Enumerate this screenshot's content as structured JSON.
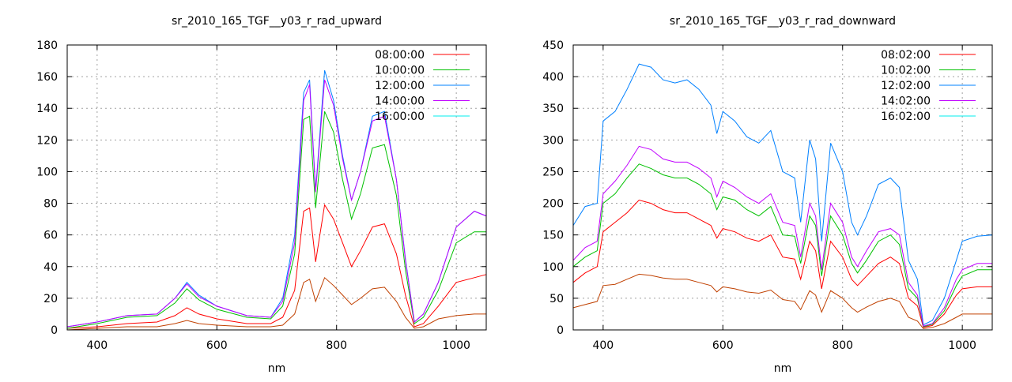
{
  "chart_data": [
    {
      "type": "line",
      "title": "sr_2010_165_TGF__y03_r_rad_upward",
      "xlabel": "nm",
      "ylabel": "",
      "xlim": [
        350,
        1050
      ],
      "ylim": [
        0,
        180
      ],
      "xticks": [
        400,
        600,
        800,
        1000
      ],
      "yticks": [
        0,
        20,
        40,
        60,
        80,
        100,
        120,
        140,
        160,
        180
      ],
      "grid": true,
      "legend_position": "top-right",
      "x": [
        350,
        400,
        450,
        500,
        530,
        550,
        570,
        600,
        650,
        690,
        710,
        730,
        745,
        755,
        765,
        780,
        795,
        810,
        825,
        840,
        860,
        880,
        900,
        915,
        930,
        945,
        970,
        1000,
        1030,
        1050
      ],
      "series": [
        {
          "name": "08:00:00",
          "color": "#ff0000",
          "line_color": "#ff0000",
          "values": [
            1,
            2,
            4,
            5,
            9,
            14,
            10,
            7,
            4,
            4,
            8,
            25,
            75,
            77,
            43,
            79,
            70,
            55,
            40,
            50,
            65,
            67,
            48,
            22,
            2,
            4,
            15,
            30,
            33,
            35
          ]
        },
        {
          "name": "10:00:00",
          "color": "#00c000",
          "line_color": "#00c000",
          "values": [
            1,
            4,
            8,
            9,
            17,
            26,
            19,
            13,
            8,
            7,
            15,
            48,
            133,
            135,
            77,
            138,
            125,
            95,
            70,
            86,
            115,
            117,
            85,
            38,
            4,
            8,
            25,
            55,
            62,
            62
          ]
        },
        {
          "name": "12:00:00",
          "color": "#0080ff",
          "line_color": "#0080ff",
          "values": [
            2,
            5,
            9,
            10,
            20,
            30,
            22,
            15,
            9,
            8,
            20,
            60,
            150,
            158,
            88,
            164,
            145,
            110,
            82,
            100,
            135,
            138,
            95,
            45,
            5,
            10,
            30,
            65,
            75,
            72
          ]
        },
        {
          "name": "14:00:00",
          "color": "#c000ff",
          "line_color": "#c000ff",
          "values": [
            2,
            5,
            9,
            10,
            20,
            29,
            21,
            15,
            9,
            8,
            18,
            55,
            145,
            155,
            87,
            158,
            142,
            108,
            82,
            100,
            132,
            135,
            95,
            44,
            5,
            10,
            30,
            65,
            75,
            72
          ]
        },
        {
          "name": "16:00:00",
          "color": "#00eeee",
          "line_color": "#c04000",
          "values": [
            0,
            1,
            2,
            2,
            4,
            6,
            4,
            3,
            2,
            2,
            3,
            10,
            30,
            32,
            18,
            33,
            28,
            22,
            16,
            20,
            26,
            27,
            18,
            8,
            1,
            2,
            7,
            9,
            10,
            10
          ]
        }
      ]
    },
    {
      "type": "line",
      "title": "sr_2010_165_TGF__y03_r_rad_downward",
      "xlabel": "nm",
      "ylabel": "",
      "xlim": [
        350,
        1050
      ],
      "ylim": [
        0,
        450
      ],
      "xticks": [
        400,
        600,
        800,
        1000
      ],
      "yticks": [
        0,
        50,
        100,
        150,
        200,
        250,
        300,
        350,
        400,
        450
      ],
      "grid": true,
      "legend_position": "top-right",
      "x": [
        350,
        370,
        390,
        400,
        420,
        440,
        460,
        480,
        500,
        520,
        540,
        560,
        580,
        590,
        600,
        620,
        640,
        660,
        680,
        700,
        720,
        730,
        745,
        755,
        765,
        780,
        800,
        815,
        825,
        840,
        860,
        880,
        895,
        910,
        925,
        935,
        950,
        970,
        990,
        1000,
        1025,
        1050
      ],
      "series": [
        {
          "name": "08:02:00",
          "color": "#ff0000",
          "line_color": "#ff0000",
          "values": [
            75,
            90,
            100,
            155,
            170,
            185,
            205,
            200,
            190,
            185,
            185,
            175,
            165,
            145,
            160,
            155,
            145,
            140,
            150,
            115,
            112,
            80,
            140,
            125,
            65,
            140,
            115,
            80,
            70,
            85,
            105,
            115,
            105,
            50,
            38,
            4,
            7,
            25,
            55,
            65,
            68,
            68
          ]
        },
        {
          "name": "10:02:00",
          "color": "#00c000",
          "line_color": "#00c000",
          "values": [
            100,
            115,
            125,
            200,
            215,
            240,
            262,
            255,
            245,
            240,
            240,
            230,
            215,
            190,
            210,
            205,
            190,
            180,
            195,
            150,
            148,
            105,
            180,
            165,
            85,
            180,
            150,
            105,
            90,
            110,
            140,
            150,
            135,
            65,
            50,
            5,
            9,
            30,
            70,
            85,
            95,
            95
          ]
        },
        {
          "name": "12:02:00",
          "color": "#0080ff",
          "line_color": "#0080ff",
          "values": [
            165,
            195,
            200,
            330,
            345,
            380,
            420,
            415,
            395,
            390,
            395,
            380,
            355,
            310,
            345,
            330,
            305,
            295,
            315,
            250,
            240,
            170,
            300,
            270,
            140,
            295,
            250,
            170,
            150,
            180,
            230,
            240,
            225,
            110,
            80,
            8,
            15,
            50,
            110,
            140,
            148,
            150
          ]
        },
        {
          "name": "14:02:00",
          "color": "#c000ff",
          "line_color": "#c000ff",
          "values": [
            110,
            130,
            140,
            215,
            235,
            260,
            290,
            285,
            270,
            265,
            265,
            255,
            240,
            210,
            235,
            225,
            210,
            200,
            215,
            170,
            165,
            115,
            200,
            180,
            95,
            200,
            170,
            115,
            100,
            125,
            155,
            160,
            150,
            75,
            55,
            6,
            10,
            35,
            80,
            95,
            105,
            105
          ]
        },
        {
          "name": "16:02:00",
          "color": "#00eeee",
          "line_color": "#c04000",
          "values": [
            35,
            40,
            45,
            70,
            72,
            80,
            88,
            86,
            82,
            80,
            80,
            75,
            70,
            60,
            68,
            65,
            60,
            58,
            63,
            48,
            45,
            32,
            62,
            55,
            28,
            62,
            50,
            35,
            28,
            36,
            45,
            50,
            45,
            20,
            14,
            2,
            4,
            10,
            20,
            25,
            25,
            25
          ]
        }
      ]
    }
  ]
}
